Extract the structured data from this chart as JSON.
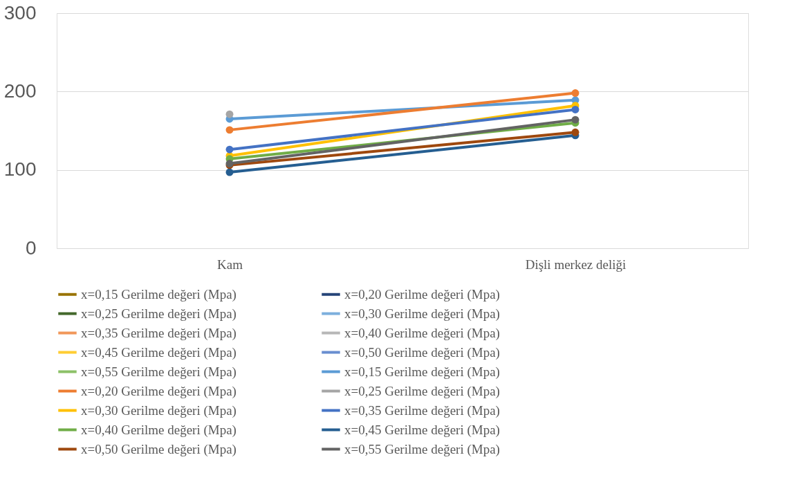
{
  "chart_data": {
    "type": "line",
    "categories": [
      "Kam",
      "Dişli merkez deliği"
    ],
    "ylim": [
      0,
      300
    ],
    "yticks": [
      0,
      100,
      200,
      300
    ],
    "grid": "y",
    "legend": "bottom",
    "marker": "circle",
    "line_style": "solid",
    "series": [
      {
        "name": "x=0,15 Gerilme değeri (Mpa)",
        "color": "#997300",
        "values": [
          null,
          null
        ]
      },
      {
        "name": "x=0,20  Gerilme değeri (Mpa)",
        "color": "#264478",
        "values": [
          null,
          null
        ]
      },
      {
        "name": "x=0,25 Gerilme değeri (Mpa)",
        "color": "#43682b",
        "values": [
          null,
          null
        ]
      },
      {
        "name": "x=0,30 Gerilme değeri (Mpa)",
        "color": "#7cafdd",
        "values": [
          null,
          null
        ]
      },
      {
        "name": "x=0,35 Gerilme değeri (Mpa)",
        "color": "#f1975a",
        "values": [
          null,
          null
        ]
      },
      {
        "name": "x=0,40 Gerilme değeri (Mpa)",
        "color": "#b7b7b7",
        "values": [
          null,
          null
        ]
      },
      {
        "name": "x=0,45 Gerilme değeri (Mpa)",
        "color": "#ffcd33",
        "values": [
          null,
          null
        ]
      },
      {
        "name": "x=0,50 Gerilme değeri (Mpa)",
        "color": "#698ed0",
        "values": [
          null,
          null
        ]
      },
      {
        "name": "x=0,55 Gerilme değeri (Mpa)",
        "color": "#8cc168",
        "values": [
          null,
          null
        ]
      },
      {
        "name": "x=0,15 Gerilme değeri (Mpa)",
        "color": "#5b9bd5",
        "values": [
          165,
          189
        ]
      },
      {
        "name": "x=0,20  Gerilme değeri (Mpa)",
        "color": "#ed7d31",
        "values": [
          151,
          198
        ]
      },
      {
        "name": "x=0,25 Gerilme değeri (Mpa)",
        "color": "#a5a5a5",
        "values": [
          171,
          null
        ]
      },
      {
        "name": "x=0,30 Gerilme değeri (Mpa)",
        "color": "#ffc000",
        "values": [
          118,
          182
        ]
      },
      {
        "name": "x=0,35 Gerilme değeri (Mpa)",
        "color": "#4472c4",
        "values": [
          126,
          177
        ]
      },
      {
        "name": "x=0,40 Gerilme değeri (Mpa)",
        "color": "#70ad47",
        "values": [
          114,
          160
        ]
      },
      {
        "name": "x=0,45 Gerilme değeri (Mpa)",
        "color": "#255e91",
        "values": [
          97,
          144
        ]
      },
      {
        "name": "x=0,50 Gerilme değeri (Mpa)",
        "color": "#9e480e",
        "values": [
          106,
          148
        ]
      },
      {
        "name": "x=0,55 Gerilme değeri (Mpa)",
        "color": "#636363",
        "values": [
          108,
          164
        ]
      }
    ]
  }
}
